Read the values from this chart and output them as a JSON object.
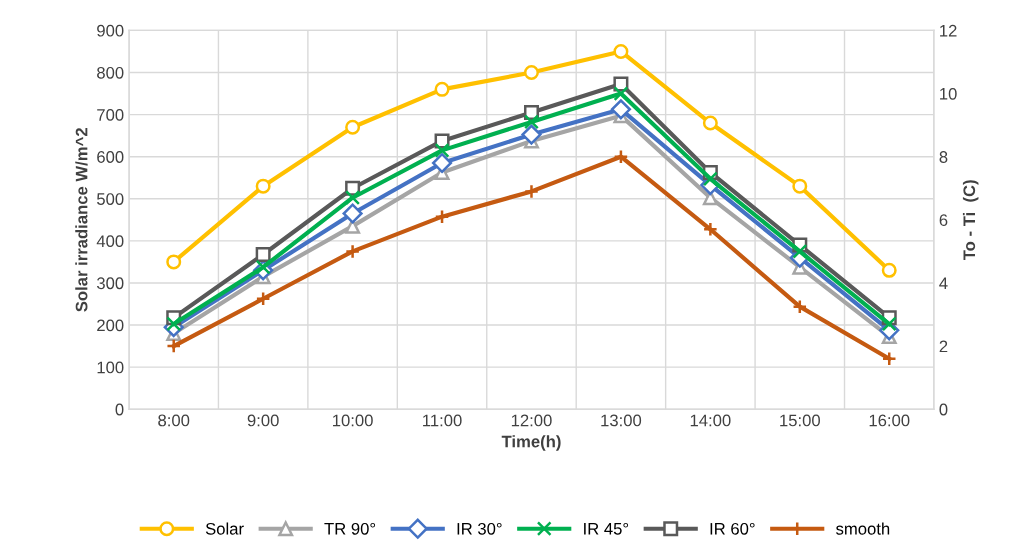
{
  "chart_data": {
    "type": "line",
    "xlabel": "Time(h)",
    "ylabel": "Solar irradiance W/m^2",
    "y2label": "To - Ti  (C)",
    "categories": [
      "8:00",
      "9:00",
      "10:00",
      "11:00",
      "12:00",
      "13:00",
      "14:00",
      "15:00",
      "16:00"
    ],
    "ylim": [
      0,
      900
    ],
    "yticks": [
      0,
      100,
      200,
      300,
      400,
      500,
      600,
      700,
      800,
      900
    ],
    "y2lim": [
      0,
      12
    ],
    "y2ticks": [
      0,
      2,
      4,
      6,
      8,
      10,
      12
    ],
    "grid": true,
    "legend": "bottom",
    "line_style": "solid",
    "series": [
      {
        "name": "Solar",
        "color": "#ffc000",
        "marker": "circle",
        "values": [
          350,
          530,
          670,
          760,
          800,
          850,
          680,
          530,
          330
        ]
      },
      {
        "name": "TR 90°",
        "color": "#a5a5a5",
        "marker": "triangle",
        "axis": "y2",
        "values": [
          2.4,
          4.2,
          5.8,
          7.5,
          8.5,
          9.3,
          6.7,
          4.5,
          2.3
        ]
      },
      {
        "name": "IR 30°",
        "color": "#4472c4",
        "marker": "diamond",
        "axis": "y2",
        "values": [
          2.6,
          4.4,
          6.2,
          7.8,
          8.7,
          9.5,
          7.1,
          4.8,
          2.5
        ]
      },
      {
        "name": "IR 45°",
        "color": "#00b050",
        "marker": "cross",
        "axis": "y2",
        "values": [
          2.7,
          4.5,
          6.7,
          8.2,
          9.1,
          10.0,
          7.3,
          5.0,
          2.7
        ]
      },
      {
        "name": "IR 60°",
        "color": "#595959",
        "marker": "square",
        "axis": "y2",
        "values": [
          2.9,
          4.9,
          7.0,
          8.5,
          9.4,
          10.3,
          7.5,
          5.2,
          2.9
        ]
      },
      {
        "name": "smooth",
        "color": "#c55a11",
        "marker": "plus",
        "axis": "y2",
        "values": [
          2.0,
          3.5,
          5.0,
          6.1,
          6.9,
          8.0,
          5.7,
          3.25,
          1.6
        ]
      }
    ]
  }
}
